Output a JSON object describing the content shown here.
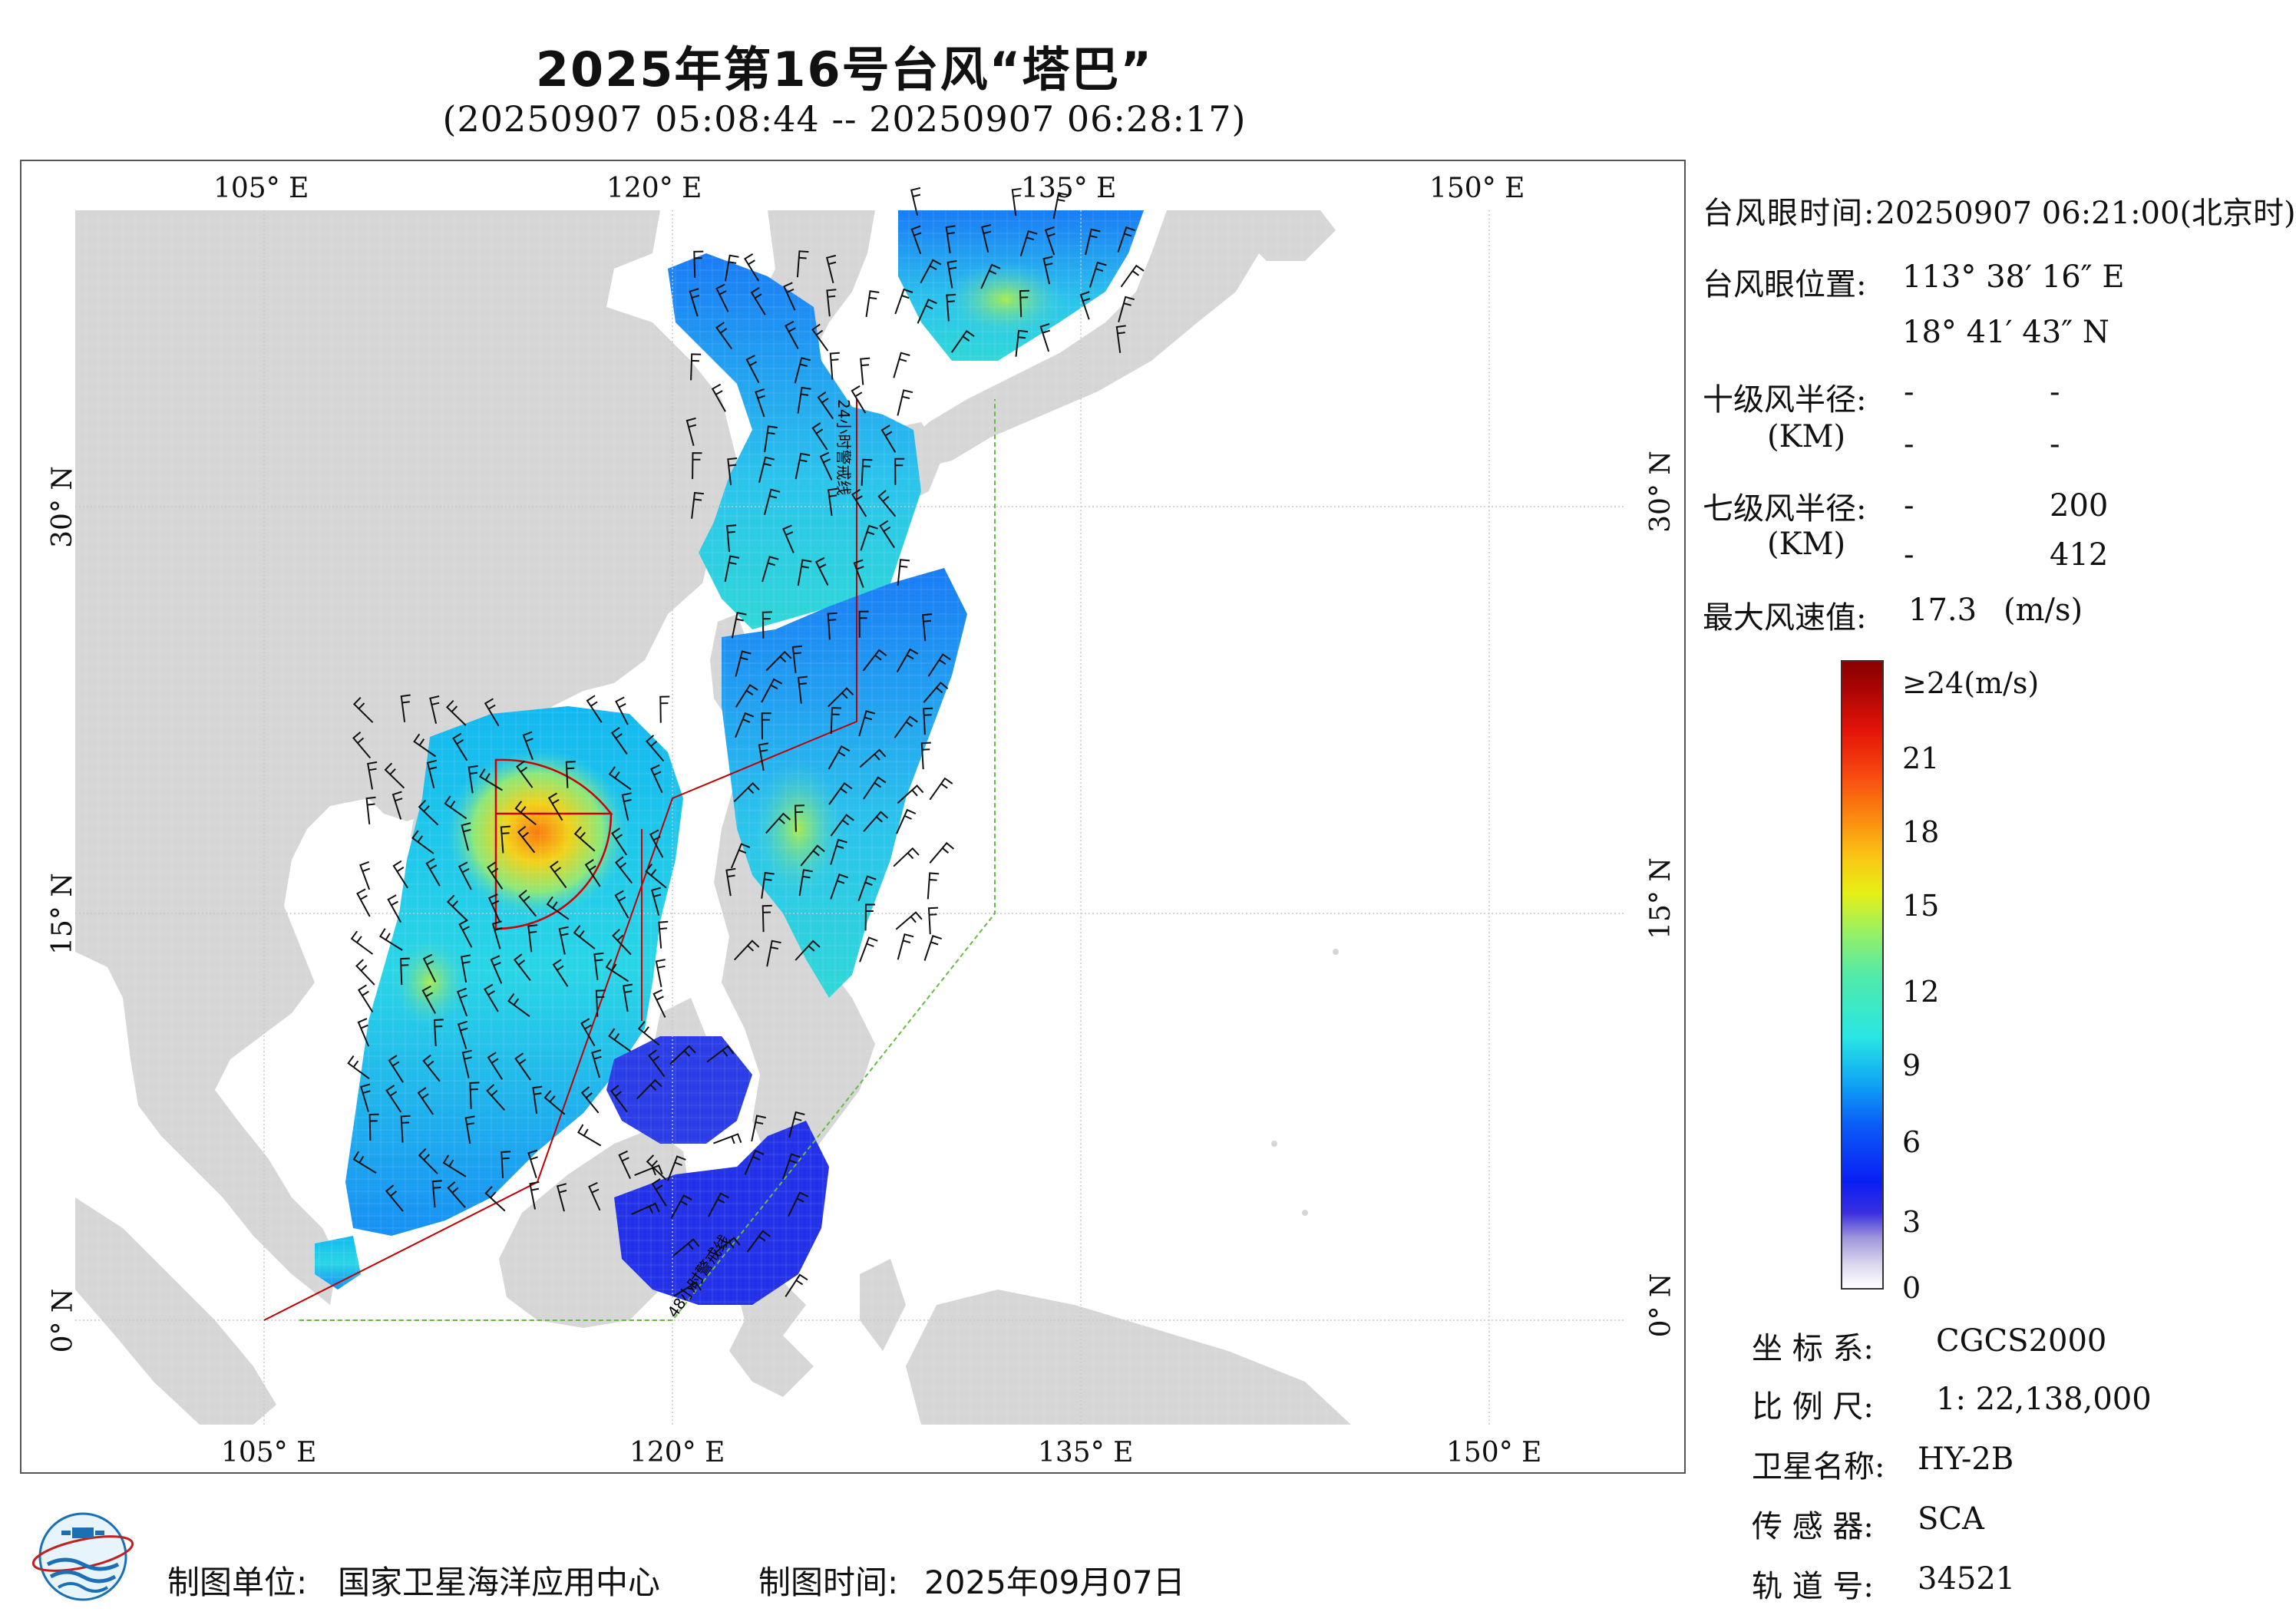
{
  "title": "2025年第16号台风“塔巴”",
  "subtitle": "(20250907 05:08:44 -- 20250907 06:28:17)",
  "axes": {
    "top": [
      "105° E",
      "120° E",
      "135° E",
      "150° E"
    ],
    "bottom": [
      "105° E",
      "120° E",
      "135° E",
      "150° E"
    ],
    "left": [
      "30° N",
      "15° N",
      "0° N"
    ],
    "right": [
      "30° N",
      "15° N",
      "0° N"
    ]
  },
  "map_annotations": {
    "warning_24h": "24小时警戒线",
    "warning_48h": "48小时警戒线"
  },
  "info": {
    "eye_time_label": "台风眼时间:",
    "eye_time_value": "20250907 06:21:00(北京时)",
    "eye_pos_label": "台风眼位置:",
    "eye_pos_lon": "113° 38′ 16″ E",
    "eye_pos_lat": "18° 41′ 43″ N",
    "r10_label": "十级风半径:",
    "r10_unit": "(KM)",
    "r10_values": [
      "-",
      "-",
      "-",
      "-"
    ],
    "r7_label": "七级风半径:",
    "r7_unit": "(KM)",
    "r7_values": [
      "-",
      "200",
      "-",
      "412"
    ],
    "maxwind_label": "最大风速值:",
    "maxwind_value": "17.3",
    "maxwind_unit": "(m/s)"
  },
  "colorbar": {
    "labels": [
      "≥24(m/s)",
      "21",
      "18",
      "15",
      "12",
      "9",
      "6",
      "3",
      "0"
    ]
  },
  "meta": {
    "crs_label": "坐 标 系:",
    "crs_value": "CGCS2000",
    "scale_label": "比 例 尺:",
    "scale_value": "1: 22,138,000",
    "sat_label": "卫星名称:",
    "sat_value": "HY-2B",
    "sensor_label": "传 感 器:",
    "sensor_value": "SCA",
    "orbit_label": "轨 道 号:",
    "orbit_value": "34521"
  },
  "footer": {
    "unit_label": "制图单位:",
    "unit_value": "国家卫星海洋应用中心",
    "time_label": "制图时间:",
    "time_value": "2025年09月07日"
  },
  "colors": {
    "land": "#d6d6d6",
    "ocean": "#ffffff",
    "warning_24h": "#c00000",
    "warning_48h": "#66bb44",
    "wind_radius": "#cc0000"
  }
}
